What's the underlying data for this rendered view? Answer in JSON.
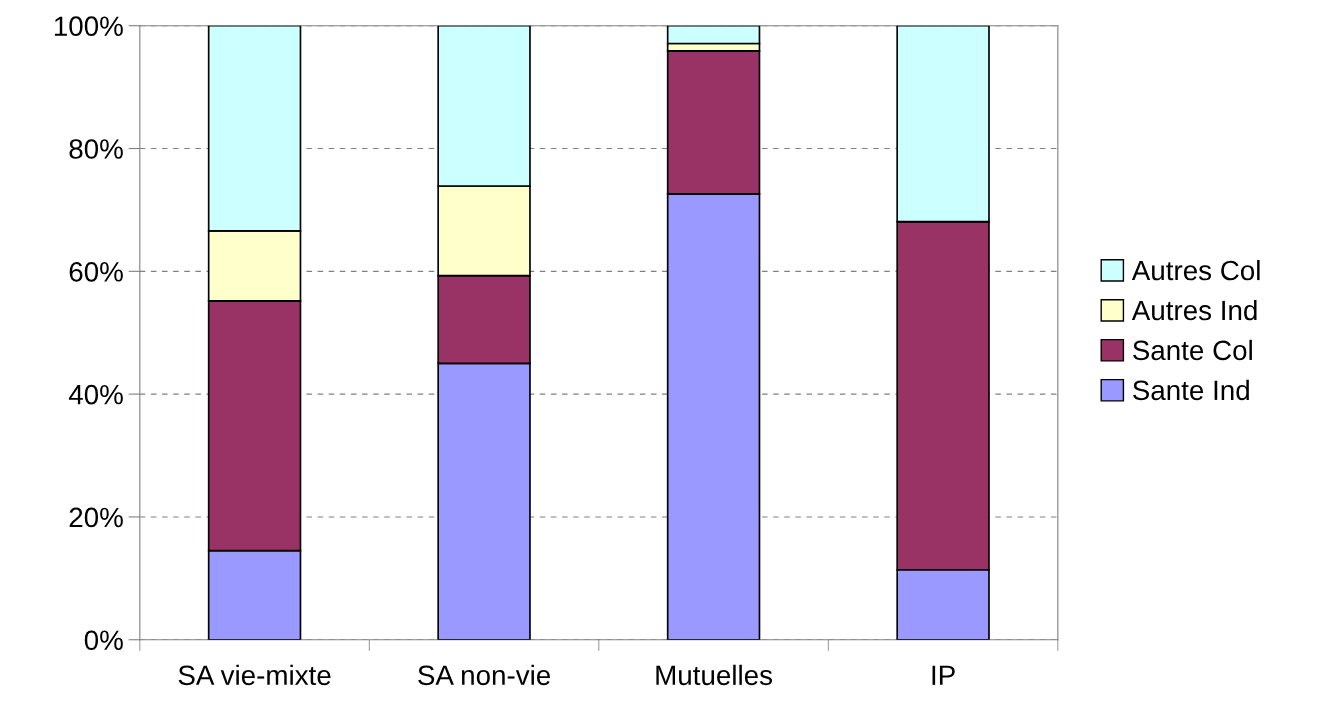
{
  "chart_data": {
    "type": "bar",
    "stacked": true,
    "categories": [
      "SA vie-mixte",
      "SA non-vie",
      "Mutuelles",
      "IP"
    ],
    "series": [
      {
        "name": "Sante Ind",
        "color": "#9999ff",
        "values": [
          14.5,
          45.0,
          72.6,
          11.4
        ]
      },
      {
        "name": "Sante Col",
        "color": "#993366",
        "values": [
          40.7,
          14.3,
          23.3,
          56.7
        ]
      },
      {
        "name": "Autres Ind",
        "color": "#ffffcc",
        "values": [
          11.4,
          14.6,
          1.2,
          0
        ]
      },
      {
        "name": "Autres Col",
        "color": "#ccffff",
        "values": [
          33.4,
          26.1,
          2.9,
          31.9
        ]
      }
    ],
    "ylim": [
      0,
      100
    ],
    "yticks": [
      {
        "value": 0,
        "label": "0%"
      },
      {
        "value": 20,
        "label": "20%"
      },
      {
        "value": 40,
        "label": "40%"
      },
      {
        "value": 60,
        "label": "60%"
      },
      {
        "value": 80,
        "label": "80%"
      },
      {
        "value": 100,
        "label": "100%"
      }
    ],
    "grid": "y",
    "legend": "right"
  }
}
